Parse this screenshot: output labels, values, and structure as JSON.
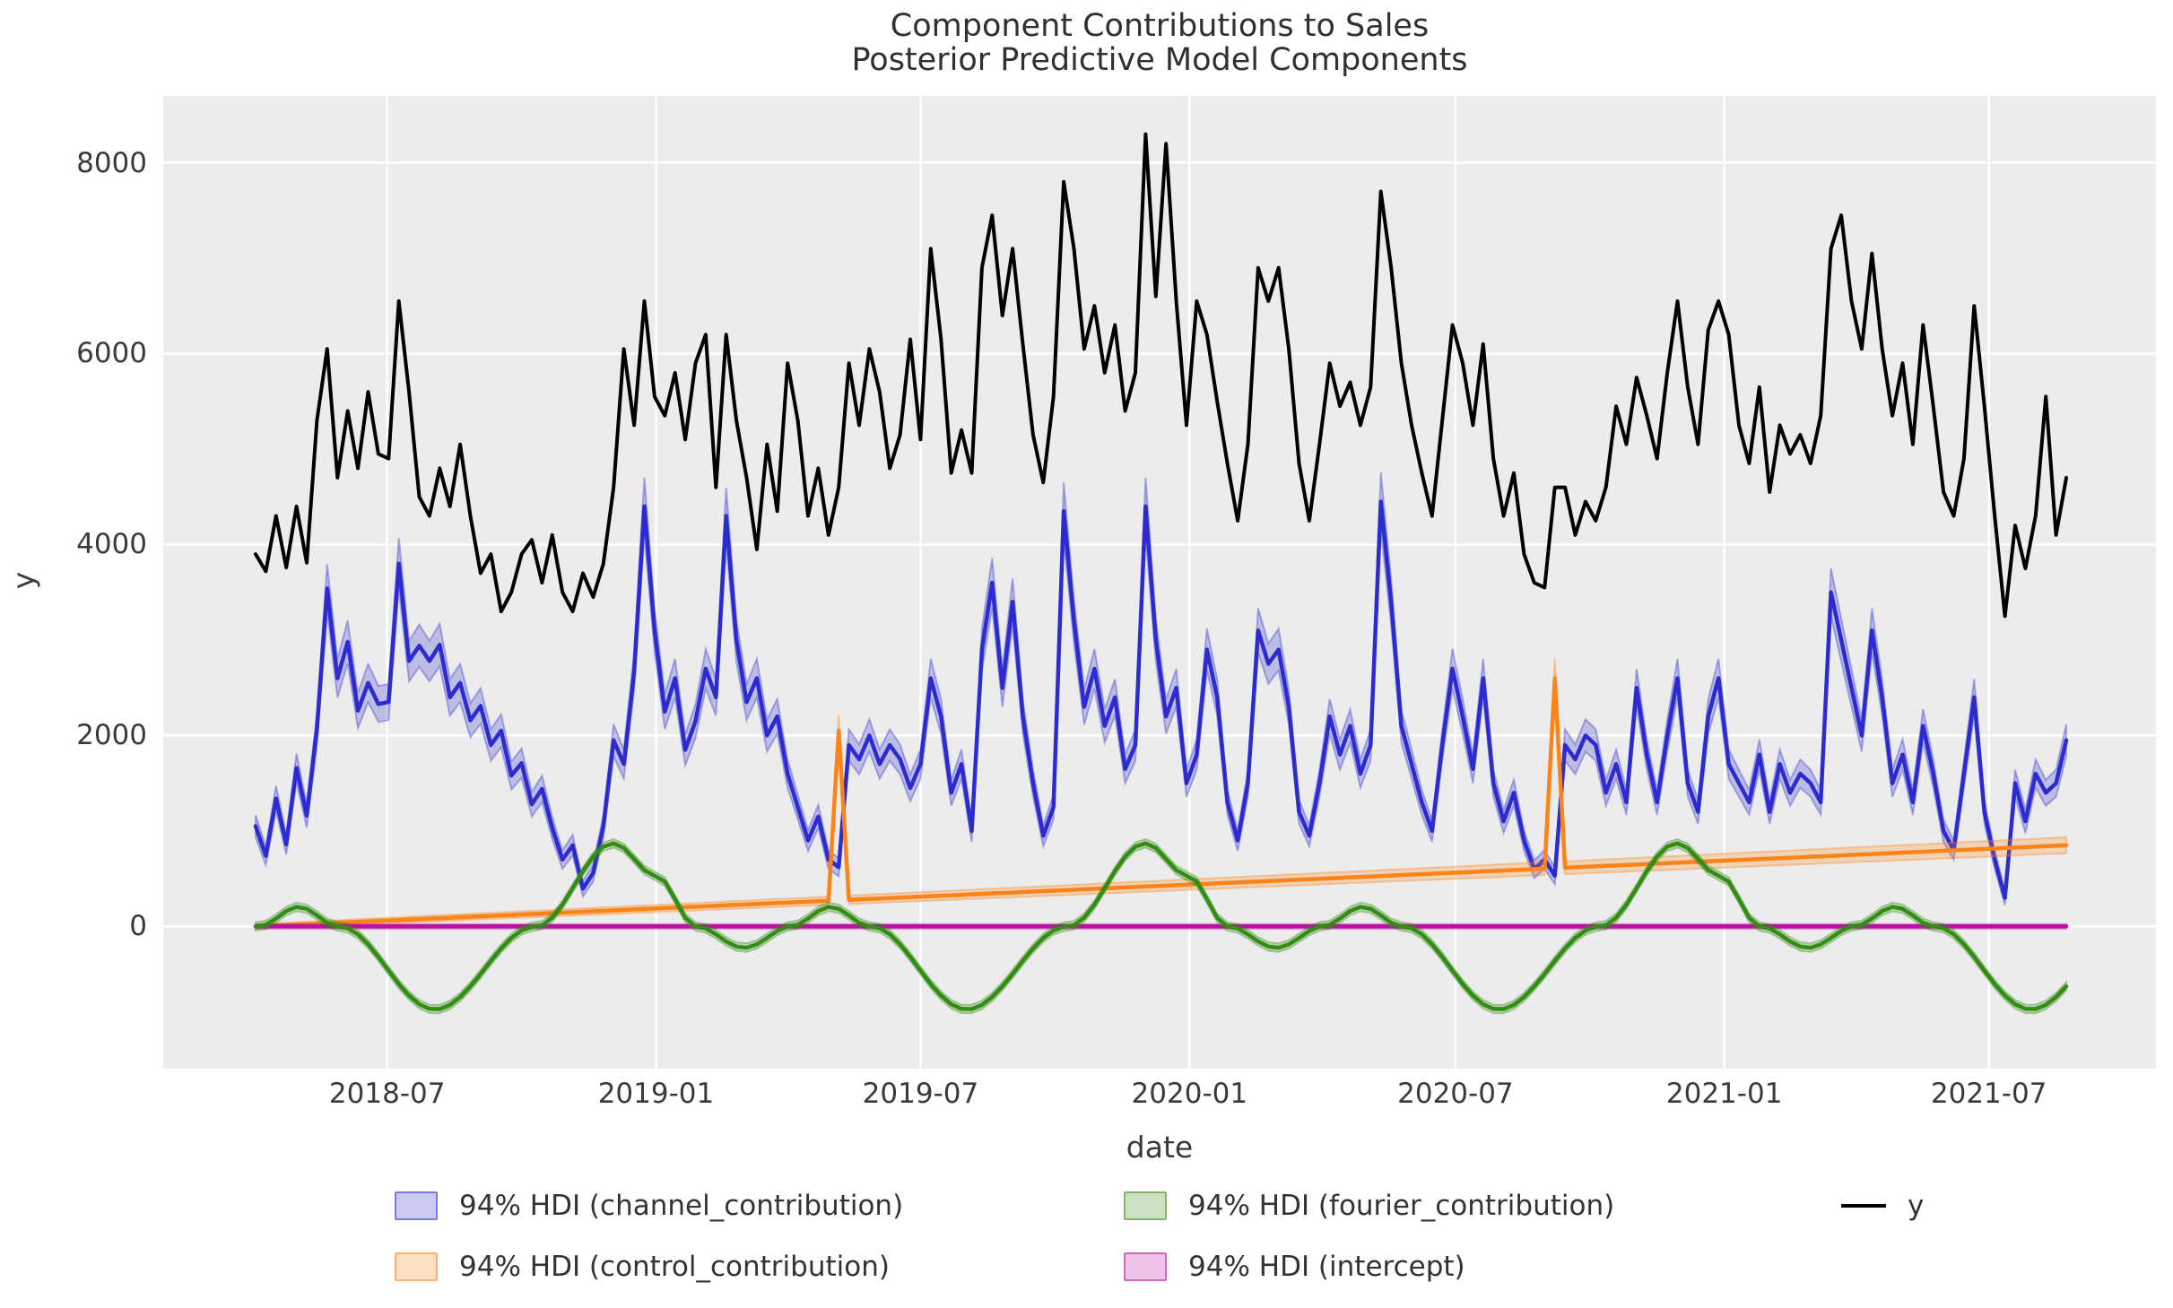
{
  "figure": {
    "title_line1": "Component Contributions to Sales",
    "title_line2": "Posterior Predictive Model Components",
    "xlabel": "date",
    "ylabel": "y"
  },
  "colors": {
    "plot_bg": "#ececec",
    "grid": "#ffffff",
    "channel": "#2b2bd0",
    "control": "#fb8317",
    "fourier": "#338c14",
    "intercept": "#bb0fa0",
    "y_line": "#000000",
    "text": "#3a3a3a"
  },
  "legend": {
    "items": [
      {
        "id": "channel",
        "label": "94% HDI (channel_contribution)",
        "type": "patch",
        "color": "#2b2bd0"
      },
      {
        "id": "control",
        "label": "94% HDI (control_contribution)",
        "type": "patch",
        "color": "#fb8317"
      },
      {
        "id": "fourier",
        "label": "94% HDI (fourier_contribution)",
        "type": "patch",
        "color": "#338c14"
      },
      {
        "id": "intercept",
        "label": "94% HDI (intercept)",
        "type": "patch",
        "color": "#bb0fa0"
      },
      {
        "id": "y",
        "label": "y",
        "type": "line",
        "color": "#000000"
      }
    ]
  },
  "chart_data": {
    "type": "line",
    "title": "Component Contributions to Sales",
    "subtitle": "Posterior Predictive Model Components",
    "xlabel": "date",
    "ylabel": "y",
    "x_start_date": "2018-04-02",
    "x_step_days": 7,
    "n_points": 178,
    "ylim": [
      -1490,
      8700
    ],
    "yticks": [
      0,
      2000,
      4000,
      6000,
      8000
    ],
    "xticks": [
      {
        "label": "2018-07",
        "week": 12.86
      },
      {
        "label": "2019-01",
        "week": 39.14
      },
      {
        "label": "2019-07",
        "week": 65.0
      },
      {
        "label": "2020-01",
        "week": 91.29
      },
      {
        "label": "2020-07",
        "week": 117.29
      },
      {
        "label": "2021-01",
        "week": 143.57
      },
      {
        "label": "2021-07",
        "week": 169.43
      }
    ],
    "series": [
      {
        "name": "channel_contribution",
        "color": "#2b2bd0",
        "band_min": 60,
        "band_frac": 0.055,
        "values": [
          1050,
          740,
          1340,
          860,
          1660,
          1160,
          2070,
          3540,
          2600,
          2980,
          2260,
          2550,
          2330,
          2350,
          3800,
          2780,
          2940,
          2780,
          2950,
          2400,
          2550,
          2160,
          2310,
          1900,
          2050,
          1580,
          1710,
          1280,
          1440,
          1030,
          700,
          850,
          395,
          560,
          1050,
          1950,
          1700,
          2670,
          4400,
          3100,
          2250,
          2600,
          1850,
          2150,
          2700,
          2400,
          4300,
          3000,
          2350,
          2600,
          2000,
          2200,
          1600,
          1250,
          900,
          1150,
          700,
          620,
          1900,
          1750,
          2000,
          1700,
          1900,
          1750,
          1450,
          1700,
          2600,
          2200,
          1400,
          1700,
          1000,
          2900,
          3600,
          2500,
          3400,
          2200,
          1500,
          950,
          1250,
          4350,
          3200,
          2300,
          2700,
          2100,
          2400,
          1650,
          1900,
          4400,
          3000,
          2200,
          2500,
          1500,
          1800,
          2900,
          2400,
          1300,
          900,
          1500,
          3100,
          2750,
          2900,
          2300,
          1200,
          950,
          1500,
          2200,
          1800,
          2100,
          1600,
          1900,
          4450,
          3400,
          2100,
          1700,
          1300,
          1000,
          1900,
          2700,
          2200,
          1650,
          2600,
          1500,
          1100,
          1400,
          900,
          600,
          700,
          530,
          1900,
          1750,
          2000,
          1900,
          1400,
          1700,
          1300,
          2500,
          1800,
          1300,
          2000,
          2600,
          1500,
          1200,
          2200,
          2600,
          1700,
          1500,
          1300,
          1800,
          1200,
          1700,
          1400,
          1600,
          1500,
          1300,
          3500,
          3000,
          2500,
          2000,
          3100,
          2400,
          1500,
          1800,
          1300,
          2100,
          1600,
          1000,
          800,
          1600,
          2400,
          1200,
          700,
          300,
          1500,
          1100,
          1600,
          1400,
          1500,
          1950
        ]
      },
      {
        "name": "control_contribution",
        "color": "#fb8317",
        "band_min": 25,
        "band_frac": 0.07,
        "values": [
          0,
          5,
          10,
          14,
          19,
          24,
          29,
          34,
          38,
          43,
          48,
          53,
          58,
          62,
          67,
          72,
          77,
          82,
          86,
          91,
          96,
          101,
          106,
          110,
          115,
          120,
          125,
          130,
          134,
          139,
          144,
          149,
          154,
          158,
          163,
          168,
          173,
          178,
          182,
          187,
          192,
          197,
          202,
          206,
          211,
          216,
          221,
          226,
          230,
          235,
          240,
          245,
          250,
          254,
          259,
          264,
          269,
          2050,
          278,
          283,
          288,
          293,
          298,
          302,
          307,
          312,
          317,
          322,
          326,
          331,
          336,
          341,
          346,
          350,
          355,
          360,
          365,
          370,
          374,
          379,
          384,
          389,
          394,
          398,
          403,
          408,
          413,
          418,
          422,
          427,
          432,
          437,
          442,
          446,
          451,
          456,
          461,
          466,
          470,
          475,
          480,
          485,
          490,
          494,
          499,
          504,
          509,
          514,
          518,
          523,
          528,
          533,
          538,
          542,
          547,
          552,
          557,
          562,
          566,
          571,
          576,
          581,
          586,
          590,
          595,
          600,
          605,
          2600,
          614,
          619,
          624,
          629,
          634,
          638,
          643,
          648,
          653,
          658,
          662,
          667,
          672,
          677,
          682,
          686,
          691,
          696,
          701,
          706,
          710,
          715,
          720,
          725,
          730,
          734,
          739,
          744,
          749,
          754,
          758,
          763,
          768,
          773,
          778,
          782,
          787,
          792,
          797,
          802,
          806,
          811,
          816,
          821,
          826,
          830,
          835,
          840,
          845,
          850
        ]
      },
      {
        "name": "intercept",
        "color": "#bb0fa0",
        "band_min": 25,
        "band_frac": 0,
        "values_const": 0
      },
      {
        "name": "fourier_contribution",
        "color": "#338c14",
        "band_min": 45,
        "band_frac": 0,
        "values": [
          0,
          16,
          82,
          161,
          204,
          185,
          116,
          38,
          0,
          -19,
          -83,
          -187,
          -319,
          -463,
          -604,
          -725,
          -816,
          -864,
          -865,
          -822,
          -740,
          -628,
          -498,
          -360,
          -231,
          -121,
          -43,
          -4,
          13,
          92,
          228,
          401,
          579,
          732,
          835,
          870,
          821,
          707,
          589,
          531,
          470,
          286,
          90,
          0,
          -22,
          -83,
          -157,
          -211,
          -223,
          -188,
          -120,
          -48,
          0,
          16,
          82,
          161,
          204,
          185,
          116,
          38,
          0,
          -19,
          -83,
          -187,
          -319,
          -463,
          -604,
          -725,
          -816,
          -864,
          -865,
          -822,
          -740,
          -628,
          -498,
          -360,
          -231,
          -121,
          -43,
          -4,
          13,
          92,
          228,
          401,
          579,
          732,
          835,
          870,
          821,
          707,
          589,
          531,
          470,
          286,
          90,
          0,
          -22,
          -83,
          -157,
          -211,
          -223,
          -188,
          -120,
          -48,
          0,
          16,
          82,
          161,
          204,
          185,
          116,
          38,
          0,
          -19,
          -83,
          -187,
          -319,
          -463,
          -604,
          -725,
          -816,
          -864,
          -865,
          -822,
          -740,
          -628,
          -498,
          -360,
          -231,
          -121,
          -43,
          -4,
          13,
          92,
          228,
          401,
          579,
          732,
          835,
          870,
          821,
          707,
          589,
          531,
          470,
          286,
          90,
          0,
          -22,
          -83,
          -157,
          -211,
          -223,
          -188,
          -120,
          -48,
          0,
          16,
          82,
          161,
          204,
          185,
          116,
          38,
          0,
          -19,
          -83,
          -187,
          -319,
          -463,
          -604,
          -725,
          -816,
          -864,
          -865,
          -822,
          -740,
          -628
        ]
      },
      {
        "name": "y",
        "color": "#000000",
        "band": false,
        "values": [
          3900,
          3720,
          4300,
          3760,
          4400,
          3810,
          5300,
          6050,
          4700,
          5400,
          4800,
          5600,
          4950,
          4900,
          6550,
          5600,
          4500,
          4300,
          4800,
          4400,
          5050,
          4300,
          3700,
          3900,
          3300,
          3500,
          3900,
          4050,
          3600,
          4100,
          3500,
          3300,
          3700,
          3450,
          3800,
          4600,
          6050,
          5250,
          6550,
          5550,
          5350,
          5800,
          5100,
          5900,
          6200,
          4600,
          6200,
          5300,
          4700,
          3950,
          5050,
          4350,
          5900,
          5300,
          4300,
          4800,
          4100,
          4600,
          5900,
          5250,
          6050,
          5600,
          4800,
          5150,
          6150,
          5100,
          7100,
          6150,
          4750,
          5200,
          4750,
          6900,
          7450,
          6400,
          7100,
          6100,
          5150,
          4650,
          5550,
          7800,
          7100,
          6050,
          6500,
          5800,
          6300,
          5400,
          5800,
          8300,
          6600,
          8200,
          6550,
          5250,
          6550,
          6200,
          5500,
          4850,
          4250,
          5050,
          6900,
          6550,
          6900,
          6050,
          4850,
          4250,
          5050,
          5900,
          5450,
          5700,
          5250,
          5650,
          7700,
          6900,
          5900,
          5250,
          4750,
          4300,
          5300,
          6300,
          5900,
          5250,
          6100,
          4900,
          4300,
          4750,
          3900,
          3600,
          3550,
          4600,
          4600,
          4100,
          4450,
          4250,
          4600,
          5450,
          5050,
          5750,
          5350,
          4900,
          5800,
          6550,
          5650,
          5050,
          6250,
          6550,
          6200,
          5250,
          4850,
          5650,
          4550,
          5250,
          4950,
          5150,
          4850,
          5350,
          7100,
          7450,
          6550,
          6050,
          7050,
          6050,
          5350,
          5900,
          5050,
          6300,
          5450,
          4550,
          4300,
          4900,
          6500,
          5450,
          4300,
          3250,
          4200,
          3750,
          4300,
          5550,
          4100,
          4700
        ]
      }
    ]
  }
}
